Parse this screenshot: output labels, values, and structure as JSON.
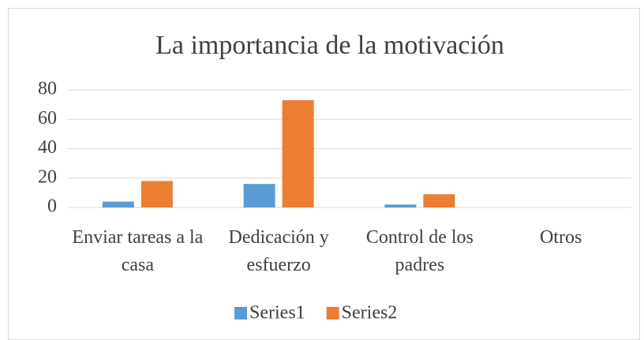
{
  "chart_data": {
    "type": "bar",
    "title": "La importancia de la motivación",
    "categories": [
      "Enviar tareas a la casa",
      "Dedicación y esfuerzo",
      "Control de los padres",
      "Otros"
    ],
    "series": [
      {
        "name": "Series1",
        "color": "#5b9bd5",
        "values": [
          4,
          16,
          2,
          0
        ]
      },
      {
        "name": "Series2",
        "color": "#ed7d31",
        "values": [
          18,
          73,
          9,
          0
        ]
      }
    ],
    "ylim": [
      0,
      80
    ],
    "yticks": [
      0,
      20,
      40,
      60,
      80
    ],
    "grid": true,
    "legend": "bottom"
  }
}
